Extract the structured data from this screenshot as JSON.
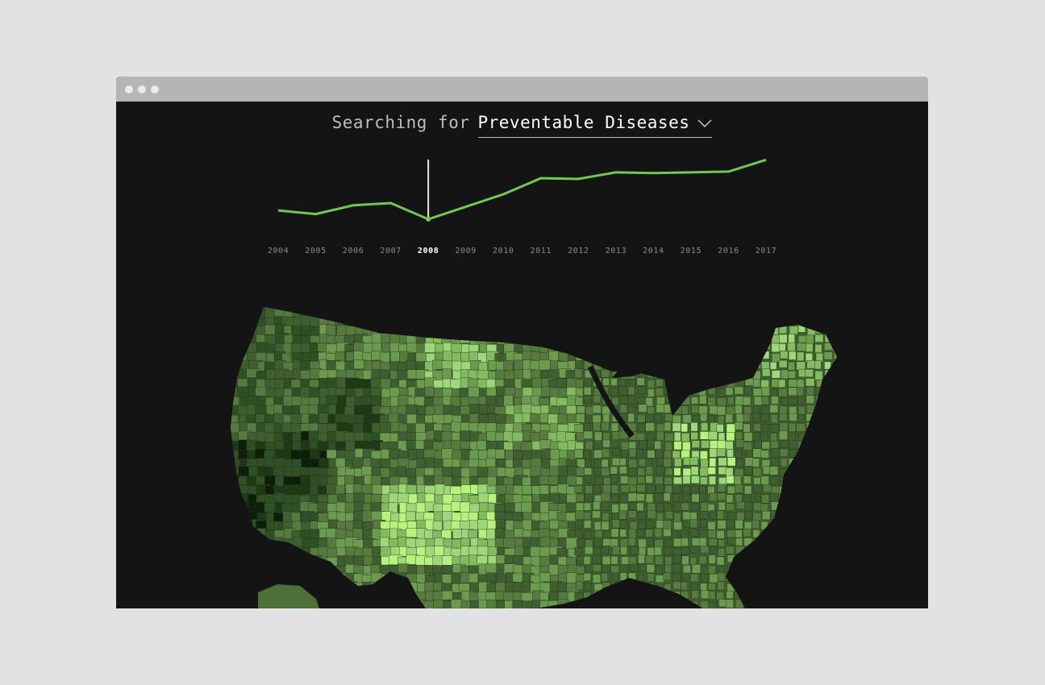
{
  "window": {
    "dots": [
      "window-dot-close",
      "window-dot-minimize",
      "window-dot-maximize"
    ]
  },
  "header": {
    "prefix": "Searching for",
    "topic": "Preventable Diseases",
    "dropdown_icon": "chevron-down-icon"
  },
  "colors": {
    "accent": "#72c94f",
    "background": "#141414",
    "selected_marker": "#e8e8e8",
    "map_shades": [
      "#0e1f09",
      "#1f3917",
      "#2f4f25",
      "#405f31",
      "#577b3f",
      "#6c9a4e",
      "#85bb60",
      "#9ed77a",
      "#b8f27e"
    ]
  },
  "chart_data": {
    "type": "line",
    "categories": [
      "2004",
      "2005",
      "2006",
      "2007",
      "2008",
      "2009",
      "2010",
      "2011",
      "2012",
      "2013",
      "2014",
      "2015",
      "2016",
      "2017"
    ],
    "values": [
      34,
      29,
      41,
      44,
      22,
      39,
      56,
      78,
      77,
      86,
      85,
      86,
      87,
      103
    ],
    "ylim": [
      0,
      110
    ],
    "selected": "2008",
    "axes_visible": false,
    "grid": false
  },
  "map": {
    "region": "United States",
    "shading": "relative search interest by county (choropleth)"
  }
}
